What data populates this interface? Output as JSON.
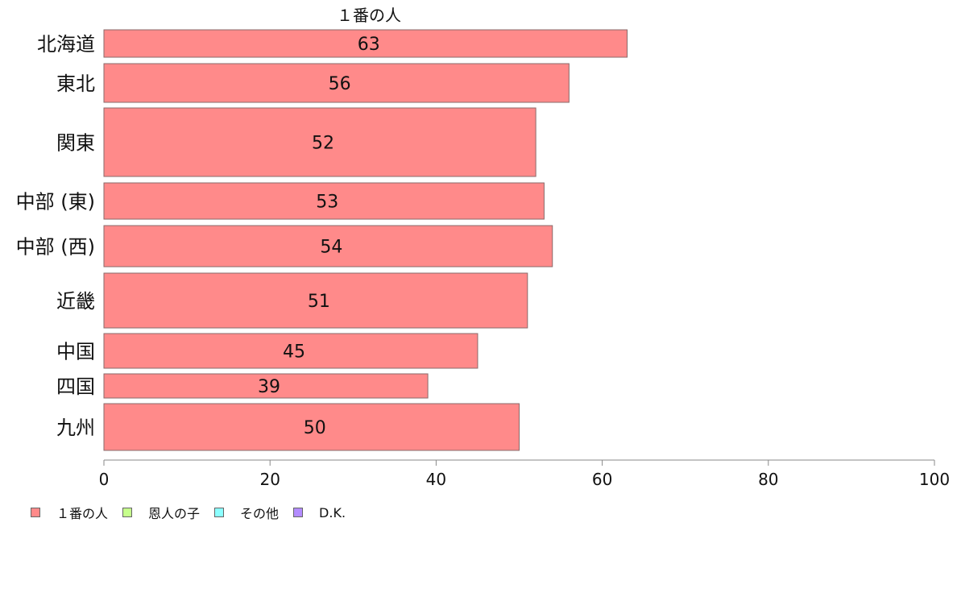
{
  "chart_data": {
    "type": "bar",
    "orientation": "horizontal",
    "title": "１番の人",
    "categories": [
      "北海道",
      "東北",
      "関東",
      "中部 (東)",
      "中部 (西)",
      "近畿",
      "中国",
      "四国",
      "九州"
    ],
    "series": [
      {
        "name": "１番の人",
        "values": [
          63,
          56,
          52,
          53,
          54,
          51,
          45,
          39,
          50
        ],
        "color": "#ff8a8a"
      }
    ],
    "xlim": [
      0,
      100
    ],
    "xticks": [
      0,
      20,
      40,
      60,
      80,
      100
    ],
    "grid": false,
    "legend_position": "bottom-left",
    "legend": [
      {
        "label": "１番の人",
        "color": "#ff8a8a"
      },
      {
        "label": "恩人の子",
        "color": "#c6ff8c"
      },
      {
        "label": "その他",
        "color": "#8cffff"
      },
      {
        "label": "D.K.",
        "color": "#b38cff"
      }
    ]
  }
}
